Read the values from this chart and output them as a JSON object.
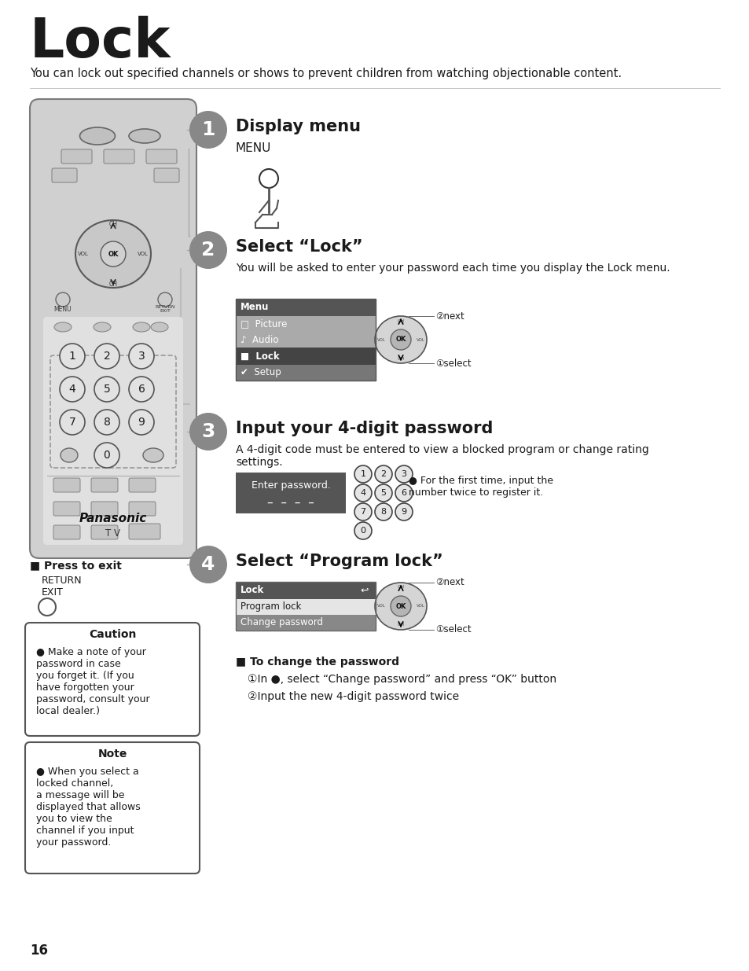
{
  "title": "Lock",
  "subtitle": "You can lock out specified channels or shows to prevent children from watching objectionable content.",
  "step1_title": "Display menu",
  "step1_label": "MENU",
  "step2_title": "Select “Lock”",
  "step2_desc": "You will be asked to enter your password each time you display the Lock menu.",
  "step3_title": "Input your 4-digit password",
  "step3_desc_line1": "A 4-digit code must be entered to view a blocked program or change rating",
  "step3_desc_line2": "settings.",
  "step3_box_label": "Enter password.",
  "step3_dashes": "–  –  –  –",
  "step3_note": "For the first time, input the\nnumber twice to register it.",
  "step4_title": "Select “Program lock”",
  "press_exit_title": "■ Press to exit",
  "press_exit_lines": "RETURN\nEXIT",
  "caution_title": "Caution",
  "caution_text": "Make a note of your\npassword in case\nyou forget it. (If you\nhave forgotten your\npassword, consult your\nlocal dealer.)",
  "note_title": "Note",
  "note_text": "When you select a\nlocked channel,\na message will be\ndisplayed that allows\nyou to view the\nchannel if you input\nyour password.",
  "change_pw_title": "■ To change the password",
  "change_pw_line1": "①In ●, select “Change password” and press “OK” button",
  "change_pw_line2": "②Input the new 4-digit password twice",
  "page_number": "16",
  "bg_color": "#ffffff",
  "text_color": "#1a1a1a",
  "step_circle_color": "#888888",
  "remote_body_color": "#d8d8d8",
  "remote_border_color": "#555555",
  "menu2_items": [
    "Menu",
    "□  Picture",
    "♪  Audio",
    "■  Lock",
    "✔  Setup"
  ],
  "menu2_colors": [
    "#555555",
    "#999999",
    "#999999",
    "#444444",
    "#777777"
  ],
  "menu4_items": [
    "Lock",
    "Program lock",
    "Change password"
  ],
  "menu4_colors": [
    "#555555",
    "#ffffff",
    "#888888"
  ]
}
